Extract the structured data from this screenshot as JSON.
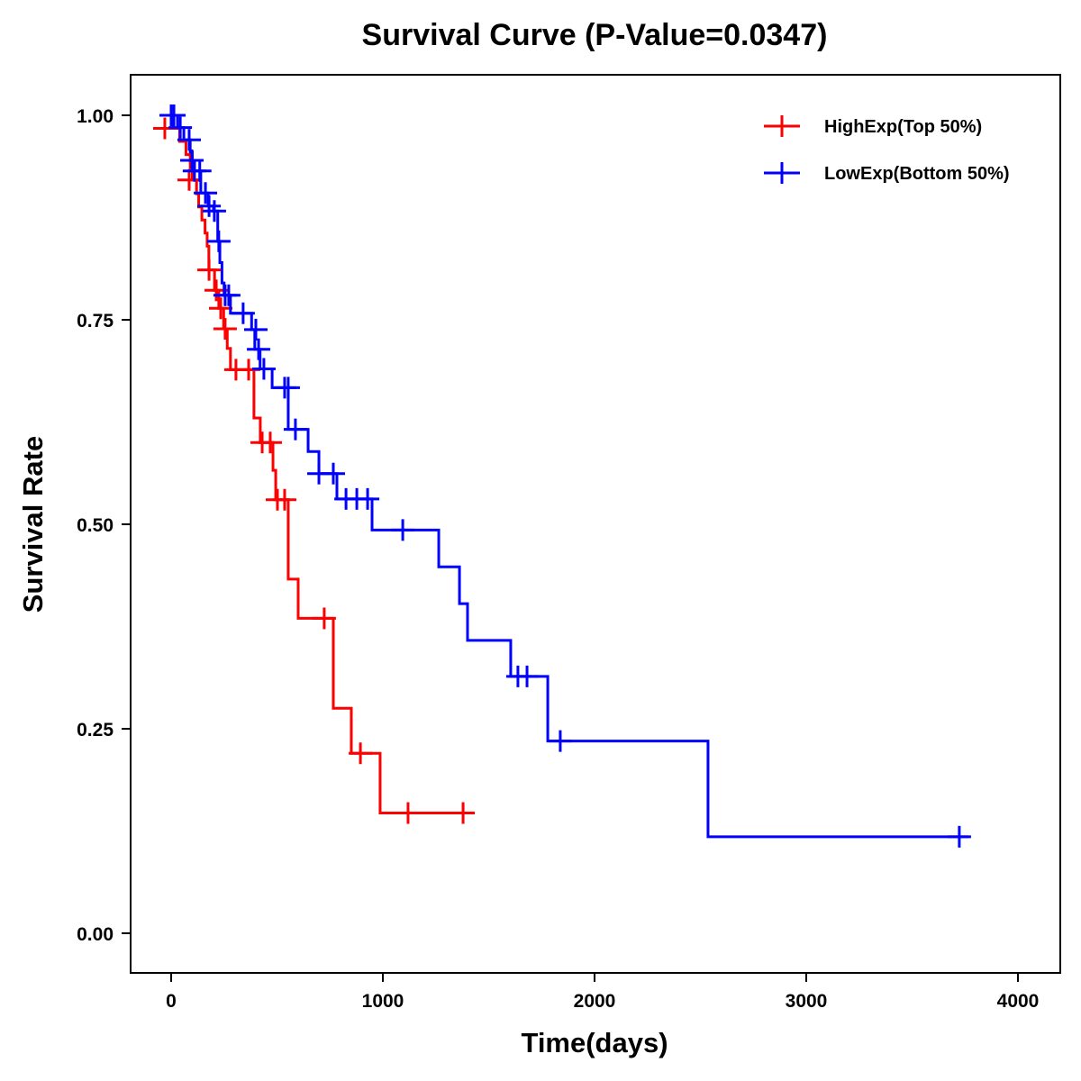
{
  "chart_data": {
    "type": "line",
    "subtype": "kaplan-meier step",
    "title": "Survival Curve (P-Value=0.0347)",
    "xlabel": "Time(days)",
    "ylabel": "Survival Rate",
    "xlim": [
      -190,
      4200
    ],
    "ylim": [
      -0.05,
      1.05
    ],
    "xticks": [
      0,
      1000,
      2000,
      3000,
      4000
    ],
    "xtick_labels": [
      "0",
      "1000",
      "2000",
      "3000",
      "4000"
    ],
    "yticks": [
      0,
      0.25,
      0.5,
      0.75,
      1
    ],
    "ytick_labels": [
      "0.00",
      "0.25",
      "0.50",
      "0.75",
      "1.00"
    ],
    "grid": false,
    "legend_position": "top-right",
    "series": [
      {
        "name": "HighExp(Top 50%)",
        "color": "#ff0000",
        "steps": [
          [
            0,
            1.0
          ],
          [
            10,
            0.984
          ],
          [
            40,
            0.968
          ],
          [
            70,
            0.952
          ],
          [
            90,
            0.936
          ],
          [
            100,
            0.921
          ],
          [
            120,
            0.904
          ],
          [
            130,
            0.888
          ],
          [
            145,
            0.872
          ],
          [
            160,
            0.856
          ],
          [
            170,
            0.84
          ],
          [
            178,
            0.811
          ],
          [
            205,
            0.786
          ],
          [
            225,
            0.764
          ],
          [
            248,
            0.739
          ],
          [
            265,
            0.715
          ],
          [
            280,
            0.689
          ],
          [
            391,
            0.63
          ],
          [
            421,
            0.6
          ],
          [
            481,
            0.566
          ],
          [
            494,
            0.53
          ],
          [
            553,
            0.433
          ],
          [
            600,
            0.385
          ],
          [
            766,
            0.275
          ],
          [
            851,
            0.22
          ],
          [
            987,
            0.147
          ]
        ],
        "end": 1421,
        "censors": [
          [
            -30,
            0.984
          ],
          [
            85,
            0.921
          ],
          [
            179,
            0.811
          ],
          [
            213,
            0.786
          ],
          [
            234,
            0.764
          ],
          [
            255,
            0.739
          ],
          [
            306,
            0.689
          ],
          [
            366,
            0.689
          ],
          [
            430,
            0.6
          ],
          [
            468,
            0.6
          ],
          [
            502,
            0.53
          ],
          [
            536,
            0.53
          ],
          [
            723,
            0.385
          ],
          [
            894,
            0.22
          ],
          [
            1119,
            0.147
          ],
          [
            1379,
            0.147
          ]
        ]
      },
      {
        "name": "LowExp(Bottom 50%)",
        "color": "#0000ff",
        "steps": [
          [
            0,
            1.0
          ],
          [
            30,
            0.985
          ],
          [
            60,
            0.97
          ],
          [
            90,
            0.955
          ],
          [
            100,
            0.945
          ],
          [
            110,
            0.932
          ],
          [
            140,
            0.905
          ],
          [
            175,
            0.889
          ],
          [
            200,
            0.883
          ],
          [
            220,
            0.846
          ],
          [
            230,
            0.82
          ],
          [
            240,
            0.795
          ],
          [
            250,
            0.78
          ],
          [
            280,
            0.758
          ],
          [
            380,
            0.738
          ],
          [
            395,
            0.714
          ],
          [
            420,
            0.69
          ],
          [
            477,
            0.667
          ],
          [
            553,
            0.616
          ],
          [
            647,
            0.589
          ],
          [
            698,
            0.562
          ],
          [
            783,
            0.531
          ],
          [
            949,
            0.493
          ],
          [
            1264,
            0.448
          ],
          [
            1362,
            0.403
          ],
          [
            1400,
            0.358
          ],
          [
            1604,
            0.314
          ],
          [
            1779,
            0.235
          ],
          [
            2536,
            0.118
          ]
        ],
        "end": 3766,
        "censors": [
          [
            0,
            1.0
          ],
          [
            13,
            1.0
          ],
          [
            43,
            0.985
          ],
          [
            85,
            0.97
          ],
          [
            98,
            0.945
          ],
          [
            110,
            0.932
          ],
          [
            135,
            0.932
          ],
          [
            162,
            0.905
          ],
          [
            179,
            0.889
          ],
          [
            204,
            0.883
          ],
          [
            225,
            0.846
          ],
          [
            255,
            0.78
          ],
          [
            272,
            0.78
          ],
          [
            340,
            0.758
          ],
          [
            400,
            0.738
          ],
          [
            413,
            0.714
          ],
          [
            438,
            0.69
          ],
          [
            536,
            0.667
          ],
          [
            553,
            0.667
          ],
          [
            587,
            0.616
          ],
          [
            698,
            0.562
          ],
          [
            766,
            0.562
          ],
          [
            826,
            0.531
          ],
          [
            877,
            0.531
          ],
          [
            928,
            0.531
          ],
          [
            1094,
            0.493
          ],
          [
            1638,
            0.314
          ],
          [
            1681,
            0.314
          ],
          [
            1838,
            0.235
          ],
          [
            3723,
            0.118
          ]
        ]
      }
    ]
  }
}
